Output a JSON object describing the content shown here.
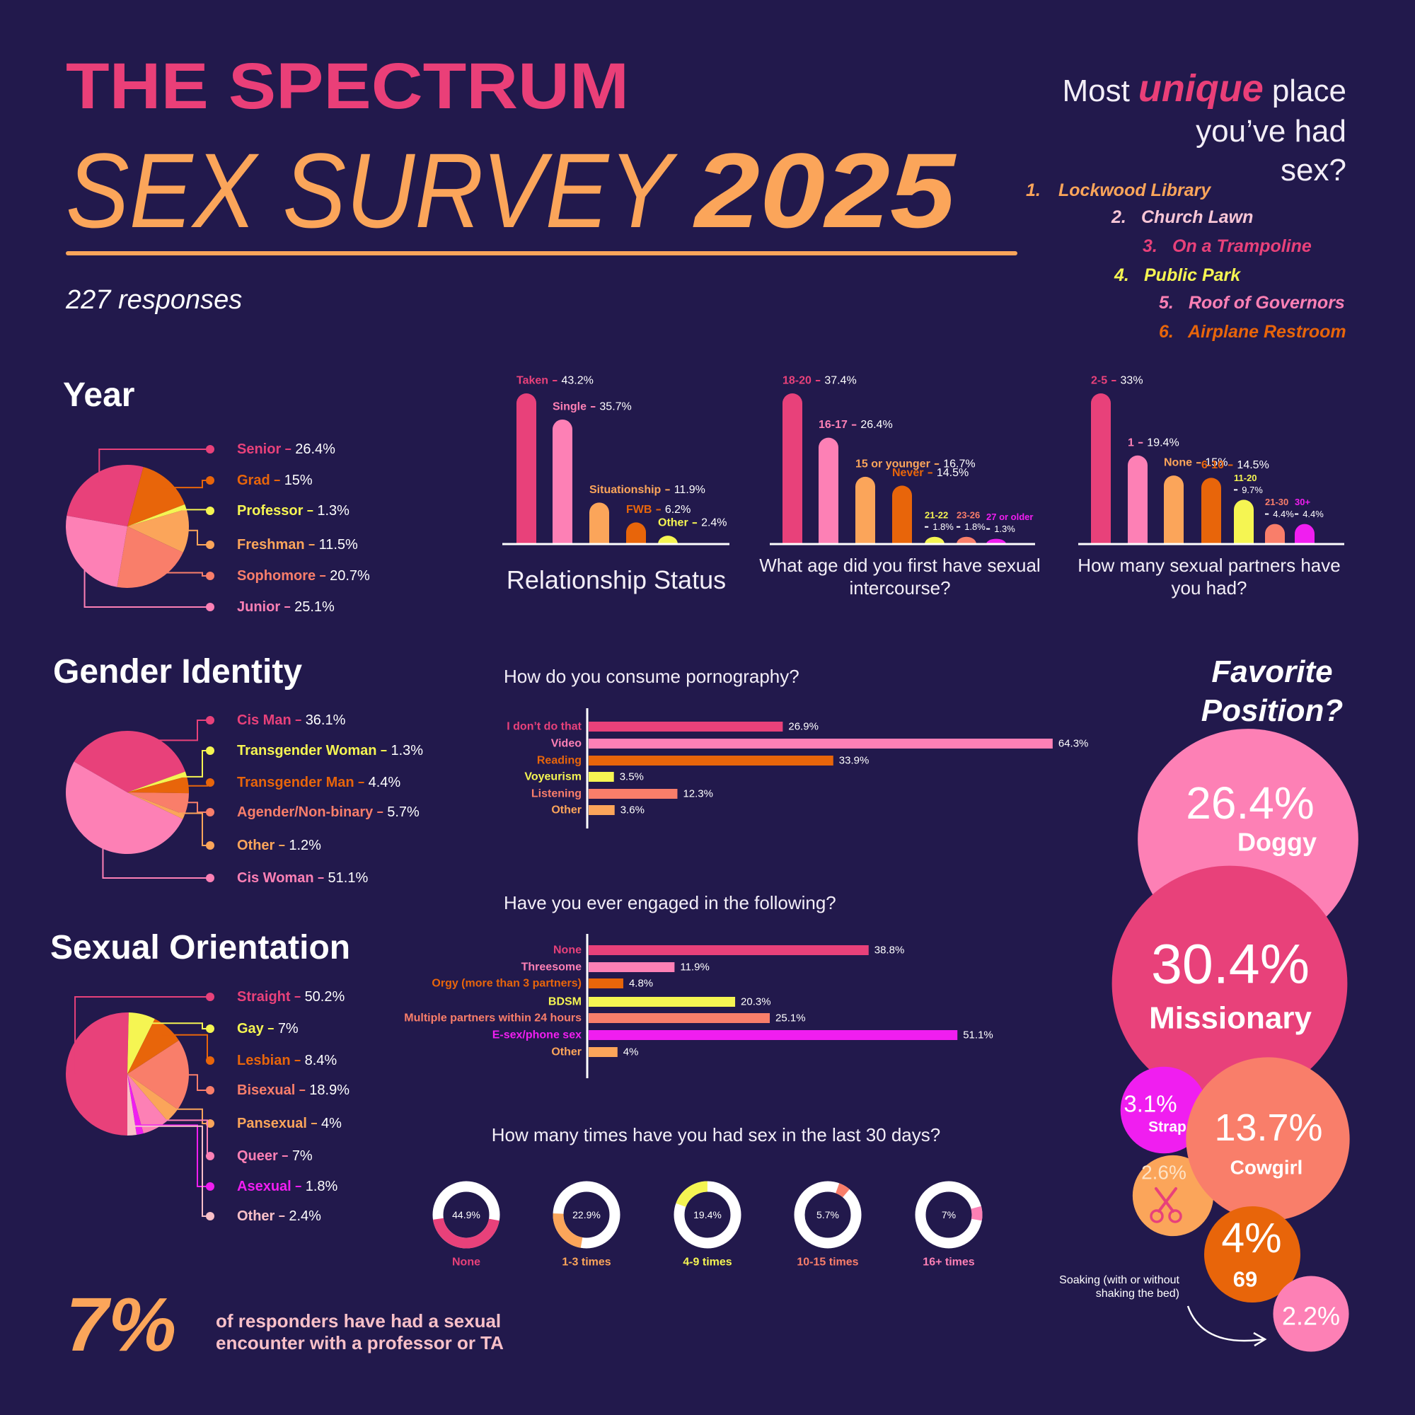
{
  "header": {
    "publication": "THE SPECTRUM",
    "title": "SEX SURVEY",
    "year": "2025",
    "responses": "227 responses"
  },
  "unique_places": {
    "lead": "Most",
    "emphasis": "unique",
    "rest": [
      "place",
      "you’ve had",
      "sex?"
    ],
    "items": [
      {
        "rank": "1.",
        "name": "Lockwood Library",
        "color": "#fba55a"
      },
      {
        "rank": "2.",
        "name": "Church Lawn",
        "color": "#f9c6d6"
      },
      {
        "rank": "3.",
        "name": "On a Trampoline",
        "color": "#e8417a"
      },
      {
        "rank": "4.",
        "name": "Public Park",
        "color": "#f5f552"
      },
      {
        "rank": "5.",
        "name": "Roof of Governors",
        "color": "#fd80b5"
      },
      {
        "rank": "6.",
        "name": "Airplane Restroom",
        "color": "#e8650a"
      }
    ]
  },
  "chart_data": [
    {
      "type": "pie",
      "title": "Year",
      "categories": [
        "Senior",
        "Grad",
        "Professor",
        "Freshman",
        "Sophomore",
        "Junior"
      ],
      "values": [
        26.4,
        15,
        1.3,
        11.5,
        20.7,
        25.1
      ],
      "value_labels": [
        "26.4%",
        "15%",
        "1.3%",
        "11.5%",
        "20.7%",
        "25.1%"
      ],
      "colors": [
        "#e8417a",
        "#e8650a",
        "#f5f552",
        "#fba55a",
        "#f97e6a",
        "#fd80b5"
      ]
    },
    {
      "type": "pie",
      "title": "Gender Identity",
      "categories": [
        "Cis Man",
        "Transgender Woman",
        "Transgender Man",
        "Agender/Non-binary",
        "Other",
        "Cis Woman"
      ],
      "values": [
        36.1,
        1.3,
        4.4,
        5.7,
        1.2,
        51.1
      ],
      "value_labels": [
        "36.1%",
        "1.3%",
        "4.4%",
        "5.7%",
        "1.2%",
        "51.1%"
      ],
      "colors": [
        "#e8417a",
        "#f5f552",
        "#e8650a",
        "#f97e6a",
        "#fba55a",
        "#fd80b5"
      ]
    },
    {
      "type": "pie",
      "title": "Sexual Orientation",
      "categories": [
        "Straight",
        "Gay",
        "Lesbian",
        "Bisexual",
        "Pansexual",
        "Queer",
        "Asexual",
        "Other"
      ],
      "values": [
        50.2,
        7,
        8.4,
        18.9,
        4,
        7,
        1.8,
        2.4
      ],
      "value_labels": [
        "50.2%",
        "7%",
        "8.4%",
        "18.9%",
        "4%",
        "7%",
        "1.8%",
        "2.4%"
      ],
      "colors": [
        "#e8417a",
        "#f5f552",
        "#e8650a",
        "#f97e6a",
        "#fba55a",
        "#fd80b5",
        "#f01ef0",
        "#f9c0c8"
      ]
    },
    {
      "type": "bar",
      "orientation": "vertical",
      "title": "Relationship Status",
      "categories": [
        "Taken",
        "Single",
        "Situationship",
        "FWB",
        "Other"
      ],
      "values": [
        43.2,
        35.7,
        11.9,
        6.2,
        2.4
      ],
      "value_labels": [
        "43.2%",
        "35.7%",
        "11.9%",
        "6.2%",
        "2.4%"
      ],
      "colors": [
        "#e8417a",
        "#fd80b5",
        "#fba55a",
        "#e8650a",
        "#f5f552"
      ]
    },
    {
      "type": "bar",
      "orientation": "vertical",
      "title": "What age did you first have sexual intercourse?",
      "categories": [
        "18-20",
        "16-17",
        "15 or younger",
        "Never",
        "21-22",
        "23-26",
        "27 or older"
      ],
      "values": [
        37.4,
        26.4,
        16.7,
        14.5,
        1.8,
        1.8,
        1.3
      ],
      "value_labels": [
        "37.4%",
        "26.4%",
        "16.7%",
        "14.5%",
        "1.8%",
        "1.8%",
        "1.3%"
      ],
      "colors": [
        "#e8417a",
        "#fd80b5",
        "#fba55a",
        "#e8650a",
        "#f5f552",
        "#f97e6a",
        "#f01ef0"
      ]
    },
    {
      "type": "bar",
      "orientation": "vertical",
      "title": "How many sexual partners have you had?",
      "categories": [
        "2-5",
        "1",
        "None",
        "6-10",
        "11-20",
        "21-30",
        "30+"
      ],
      "values": [
        33,
        19.4,
        15,
        14.5,
        9.7,
        4.4,
        4.4
      ],
      "value_labels": [
        "33%",
        "19.4%",
        "15%",
        "14.5%",
        "9.7%",
        "4.4%",
        "4.4%"
      ],
      "colors": [
        "#e8417a",
        "#fd80b5",
        "#fba55a",
        "#e8650a",
        "#f5f552",
        "#f97e6a",
        "#f01ef0"
      ]
    },
    {
      "type": "bar",
      "orientation": "horizontal",
      "title": "How do you consume pornography?",
      "categories": [
        "I don’t do that",
        "Video",
        "Reading",
        "Voyeurism",
        "Listening",
        "Other"
      ],
      "values": [
        26.9,
        64.3,
        33.9,
        3.5,
        12.3,
        3.6
      ],
      "value_labels": [
        "26.9%",
        "64.3%",
        "33.9%",
        "3.5%",
        "12.3%",
        "3.6%"
      ],
      "colors": [
        "#e8417a",
        "#fd80b5",
        "#e8650a",
        "#f5f552",
        "#f97e6a",
        "#fba55a"
      ]
    },
    {
      "type": "bar",
      "orientation": "horizontal",
      "title": "Have you ever engaged in the following?",
      "categories": [
        "None",
        "Threesome",
        "Orgy (more than 3 partners)",
        "BDSM",
        "Multiple partners within 24 hours",
        "E-sex/phone sex",
        "Other"
      ],
      "values": [
        38.8,
        11.9,
        4.8,
        20.3,
        25.1,
        51.1,
        4
      ],
      "value_labels": [
        "38.8%",
        "11.9%",
        "4.8%",
        "20.3%",
        "25.1%",
        "51.1%",
        "4%"
      ],
      "colors": [
        "#e8417a",
        "#fd80b5",
        "#e8650a",
        "#f5f552",
        "#f97e6a",
        "#f01ef0",
        "#fba55a"
      ]
    },
    {
      "type": "donut",
      "title": "How many times have you had sex in the last 30 days?",
      "categories": [
        "None",
        "1-3 times",
        "4-9 times",
        "10-15 times",
        "16+ times"
      ],
      "values": [
        44.9,
        22.9,
        19.4,
        5.7,
        7
      ],
      "value_labels": [
        "44.9%",
        "22.9%",
        "19.4%",
        "5.7%",
        "7%"
      ],
      "colors": [
        "#e8417a",
        "#fba55a",
        "#f5f552",
        "#f97e6a",
        "#fd80b5"
      ]
    },
    {
      "type": "bubble",
      "title": "Favorite Position?",
      "categories": [
        "Doggy",
        "Missionary",
        "Strap",
        "Cowgirl",
        null,
        "69",
        "Soaking (with or without shaking the bed)"
      ],
      "values": [
        26.4,
        30.4,
        3.1,
        13.7,
        2.6,
        4,
        2.2
      ],
      "value_labels": [
        "26.4%",
        "30.4%",
        "3.1%",
        "13.7%",
        "2.6%",
        "4%",
        "2.2%"
      ],
      "colors": [
        "#fd80b5",
        "#e8417a",
        "#f01ef0",
        "#f97e6a",
        "#fba55a",
        "#e8650a",
        "#fd80b5"
      ]
    }
  ],
  "callout": {
    "stat": "7%",
    "text": "of responders have had a sexual encounter with a professor or TA"
  }
}
